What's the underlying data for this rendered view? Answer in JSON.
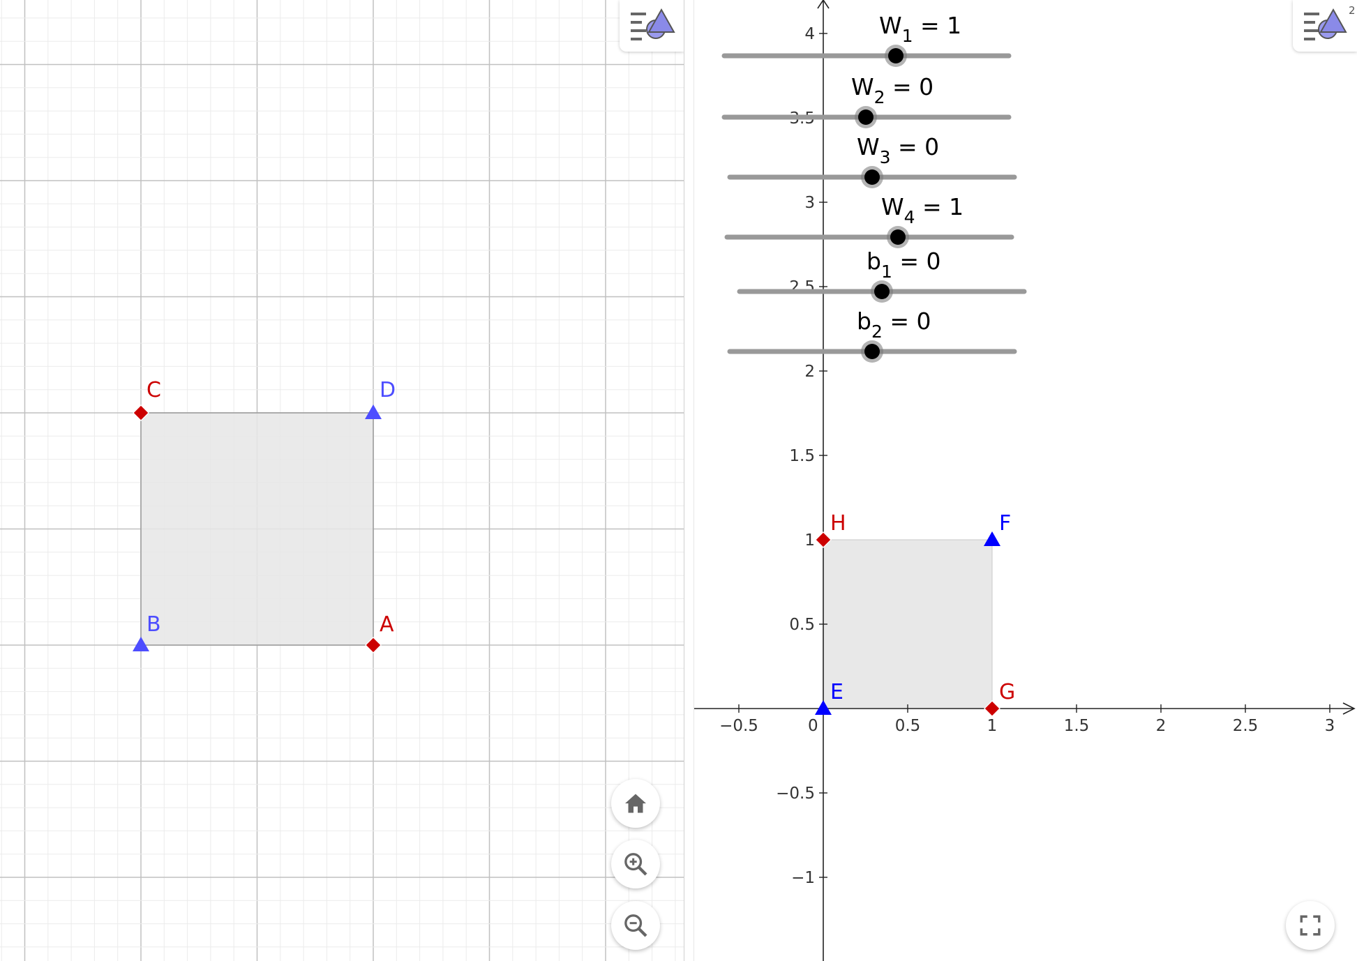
{
  "left_view": {
    "points": [
      {
        "name": "A",
        "color": "#cc0000",
        "shape": "diamond"
      },
      {
        "name": "B",
        "color": "#4d4dff",
        "shape": "triangle"
      },
      {
        "name": "C",
        "color": "#cc0000",
        "shape": "diamond"
      },
      {
        "name": "D",
        "color": "#4d4dff",
        "shape": "triangle"
      }
    ],
    "style_bar_icon": "view-menu-icon"
  },
  "right_view": {
    "x_ticks": [
      "−0.5",
      "0",
      "0.5",
      "1",
      "1.5",
      "2",
      "2.5",
      "3"
    ],
    "y_ticks": [
      "4",
      "3.5",
      "3",
      "2.5",
      "2",
      "1.5",
      "1",
      "0.5",
      "−0.5",
      "−1"
    ],
    "points": [
      {
        "name": "E",
        "color": "#0000ff",
        "shape": "triangle"
      },
      {
        "name": "F",
        "color": "#0000ff",
        "shape": "triangle"
      },
      {
        "name": "G",
        "color": "#cc0000",
        "shape": "diamond"
      },
      {
        "name": "H",
        "color": "#cc0000",
        "shape": "diamond"
      }
    ],
    "style_bar_badge": "2"
  },
  "sliders": [
    {
      "base": "W",
      "sub": "1",
      "rest": " = 1",
      "value": 1
    },
    {
      "base": "W",
      "sub": "2",
      "rest": " = 0",
      "value": 0
    },
    {
      "base": "W",
      "sub": "3",
      "rest": " = 0",
      "value": 0
    },
    {
      "base": "W",
      "sub": "4",
      "rest": " = 1",
      "value": 1
    },
    {
      "base": "b",
      "sub": "1",
      "rest": " = 0",
      "value": 0
    },
    {
      "base": "b",
      "sub": "2",
      "rest": " = 0",
      "value": 0
    }
  ],
  "buttons": {
    "home_icon": "home-icon",
    "zoom_in_icon": "zoom-in-icon",
    "zoom_out_icon": "zoom-out-icon",
    "fullscreen_icon": "fullscreen-icon"
  },
  "colors": {
    "polygon_fill": "#e6e6e6",
    "slider_track": "#999999",
    "slider_knob": "#000000",
    "grid_major": "#c0c0c0",
    "grid_minor": "#ebebeb"
  }
}
